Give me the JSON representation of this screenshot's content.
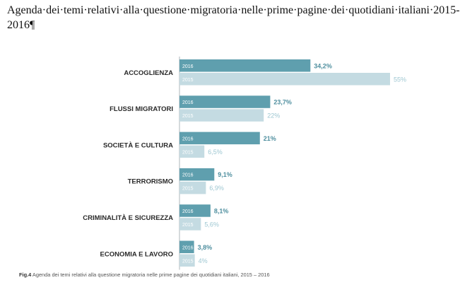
{
  "document": {
    "title": "Agenda·dei·temi·relativi·alla·questione·migratoria·nelle·prime·pagine·dei·quotidiani·italiani·2015-2016¶"
  },
  "caption": {
    "label": "Fig.4",
    "text": "Agenda dei temi relativi alla questione migratoria nelle prime pagine dei quotidiani italiani, 2015 – 2016"
  },
  "chart_data": {
    "type": "bar",
    "orientation": "horizontal",
    "categories": [
      "ACCOGLIENZA",
      "FLUSSI MIGRATORI",
      "SOCIETÀ E CULTURA",
      "TERRORISMO",
      "CRIMINALITÀ E SICUREZZA",
      "ECONOMIA E LAVORO"
    ],
    "series": [
      {
        "name": "2016",
        "values": [
          34.2,
          23.7,
          21,
          9.1,
          8.1,
          3.8
        ],
        "labels": [
          "34,2%",
          "23,7%",
          "21%",
          "9,1%",
          "8,1%",
          "3,8%"
        ],
        "color": "#5f9fae"
      },
      {
        "name": "2015",
        "values": [
          55,
          22,
          6.5,
          6.9,
          5.6,
          4
        ],
        "labels": [
          "55%",
          "22%",
          "6,5%",
          "6,9%",
          "5,6%",
          "4%"
        ],
        "color": "#c4dbe2"
      }
    ],
    "xlim": [
      0,
      55
    ],
    "grid": false,
    "legend": "none"
  },
  "colors": {
    "bar_2016": "#5f9fae",
    "bar_2015": "#c4dbe2",
    "value_2016": "#4f8f9f",
    "value_2015": "#9ec7d2",
    "category_text": "#2a2a2a",
    "axis": "#9aa4a8"
  }
}
